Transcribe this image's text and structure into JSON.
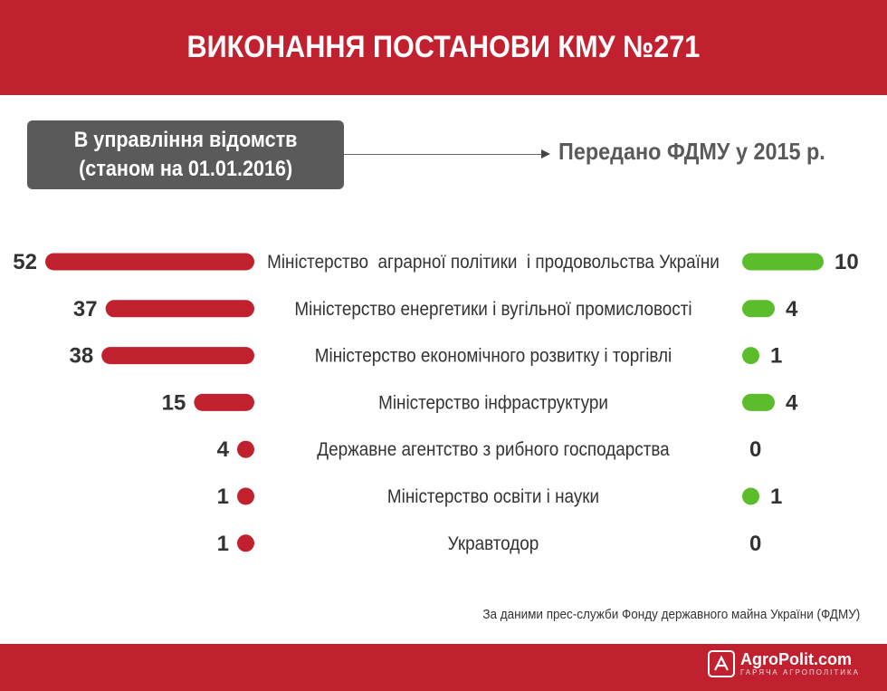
{
  "header": {
    "title": "ВИКОНАННЯ ПОСТАНОВИ КМУ №271"
  },
  "left_box": {
    "line1": "В управління відомств",
    "line2": "(станом на 01.01.2016)"
  },
  "right_title": "Передано ФДМУ у 2015 р.",
  "source": "За даними прес-служби  Фонду державного майна України (ФДМУ)",
  "logo": {
    "name": "AgroPolit.com",
    "tagline": "ГАРЯЧА АГРОПОЛІТИКА"
  },
  "colors": {
    "brand": "#c1202f",
    "left_bars": "#c1202f",
    "right_bars": "#5bbd2b",
    "box": "#5a5a5a",
    "text": "#333333"
  },
  "chart_data": {
    "type": "bar",
    "categories": [
      "Міністерство  аграрної політики  і продовольства України",
      "Міністерство енергетики і вугільної промисловості",
      "Міністерство економічного розвитку і торгівлі",
      "Міністерство інфраструктури",
      "Державне агентство з рибного господарства",
      "Міністерство освіти і науки",
      "Укравтодор"
    ],
    "series": [
      {
        "name": "В управління відомств (станом на 01.01.2016)",
        "values": [
          52,
          37,
          38,
          15,
          4,
          1,
          1
        ]
      },
      {
        "name": "Передано ФДМУ у 2015 р.",
        "values": [
          10,
          4,
          1,
          4,
          0,
          1,
          0
        ]
      }
    ]
  }
}
